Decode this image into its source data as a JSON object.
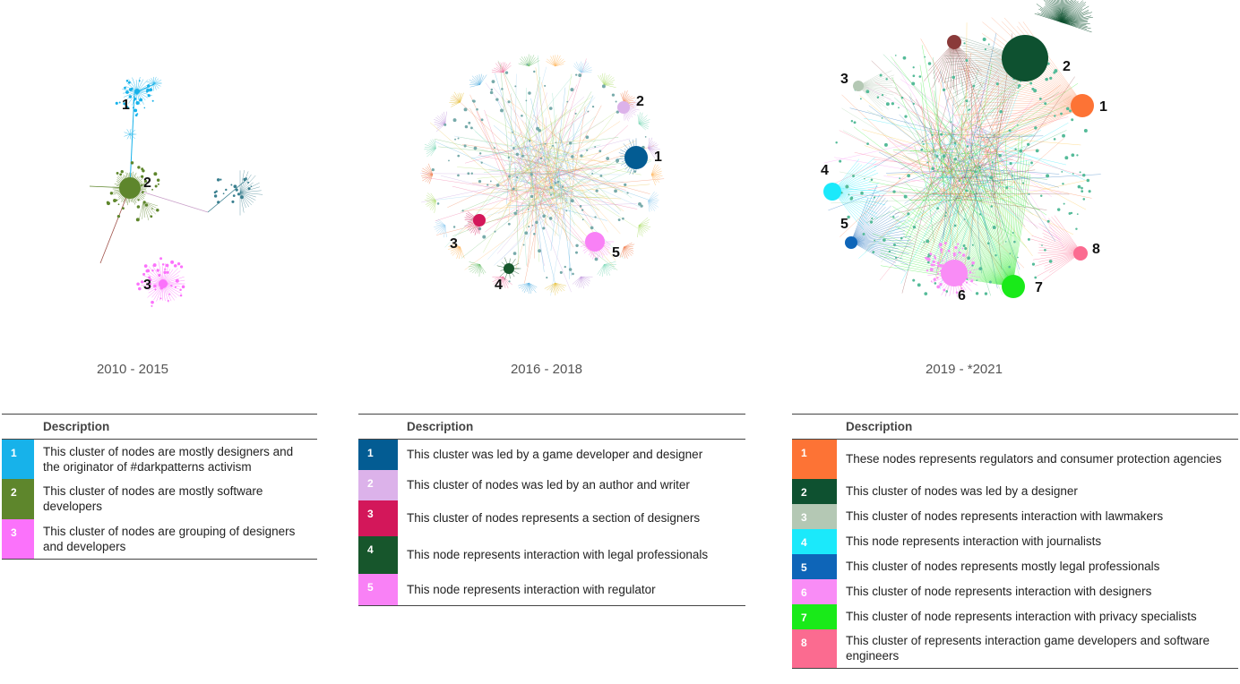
{
  "periods": [
    "2010 - 2015",
    "2016 - 2018",
    "2019 - *2021"
  ],
  "legend_header": "Description",
  "legends": [
    [
      {
        "num": "1",
        "color": "#17b2ea",
        "text": "This cluster of nodes are mostly designers and the originator of #darkpatterns activism"
      },
      {
        "num": "2",
        "color": "#5e862c",
        "text": "This cluster of nodes are mostly software developers"
      },
      {
        "num": "3",
        "color": "#fb72fb",
        "text": "This cluster of nodes are grouping of designers and developers"
      }
    ],
    [
      {
        "num": "1",
        "color": "#035c93",
        "text": "This cluster was led by a game developer and designer"
      },
      {
        "num": "2",
        "color": "#dcb2ea",
        "text": "This cluster of nodes was led by an author and writer"
      },
      {
        "num": "3",
        "color": "#d3175a",
        "text": "This cluster of nodes represents a section of designers"
      },
      {
        "num": "4",
        "color": "#17562c",
        "text": "This node represents interaction with legal professionals"
      },
      {
        "num": "5",
        "color": "#f981f6",
        "text": "This node represents interaction with regulator"
      }
    ],
    [
      {
        "num": "1",
        "color": "#fd7335",
        "text": "These nodes represents regulators and consumer protection agencies"
      },
      {
        "num": "2",
        "color": "#0e5130",
        "text": "This cluster of nodes was led by a designer"
      },
      {
        "num": "3",
        "color": "#b4c8b4",
        "text": "This cluster of nodes represents interaction with lawmakers"
      },
      {
        "num": "4",
        "color": "#1be9fb",
        "text": "This node represents interaction with journalists"
      },
      {
        "num": "5",
        "color": "#0e65b8",
        "text": "This cluster of nodes represents mostly legal professionals"
      },
      {
        "num": "6",
        "color": "#f98cf6",
        "text": "This cluster of node represents interaction with designers"
      },
      {
        "num": "7",
        "color": "#19ea19",
        "text": "This cluster of node represents interaction with privacy specialists"
      },
      {
        "num": "8",
        "color": "#fb6b90",
        "text": "This cluster of represents interaction game developers and software engineers"
      }
    ]
  ],
  "graph1": {
    "labels": [
      "1",
      "2",
      "3"
    ],
    "hubs": [
      {
        "color": "#17b2ea"
      },
      {
        "color": "#5e862c"
      },
      {
        "color": "#fb72fb"
      }
    ]
  },
  "graph2": {
    "labels": [
      "1",
      "2",
      "3",
      "4",
      "5"
    ],
    "hubs": [
      {
        "color": "#035c93"
      },
      {
        "color": "#dcb2ea"
      },
      {
        "color": "#d3175a"
      },
      {
        "color": "#17562c"
      },
      {
        "color": "#f981f6"
      }
    ]
  },
  "graph3": {
    "labels": [
      "1",
      "2",
      "3",
      "4",
      "5",
      "6",
      "7",
      "8"
    ],
    "hubs": [
      {
        "color": "#fd7335"
      },
      {
        "color": "#0e5130"
      },
      {
        "color": "#b4c8b4"
      },
      {
        "color": "#1be9fb"
      },
      {
        "color": "#0e65b8"
      },
      {
        "color": "#f98cf6"
      },
      {
        "color": "#19ea19"
      },
      {
        "color": "#fb6b90"
      }
    ]
  }
}
